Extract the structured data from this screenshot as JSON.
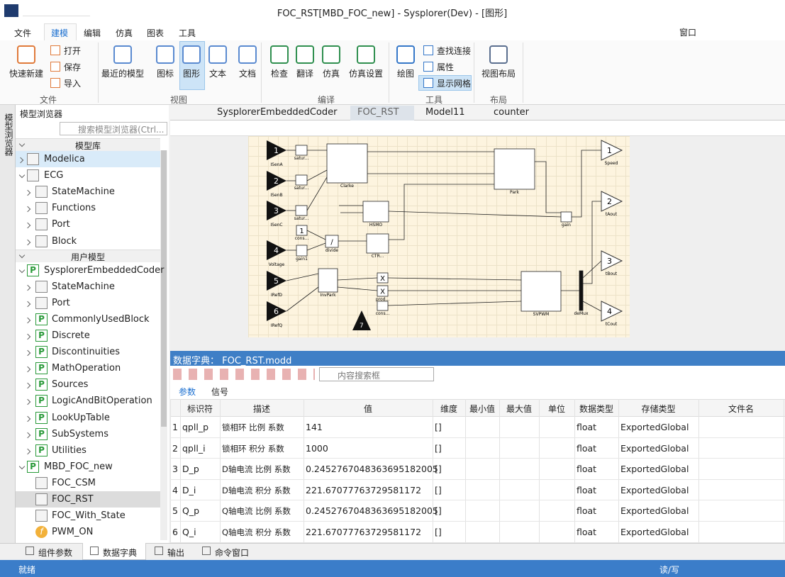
{
  "window": {
    "title": "FOC_RST[MBD_FOC_new] - Sysplorer(Dev) - [图形]"
  },
  "menu": {
    "items": [
      "文件",
      "建模",
      "编辑",
      "仿真",
      "图表",
      "工具"
    ],
    "window_menu": "窗口"
  },
  "ribbon": {
    "groups": [
      {
        "name": "文件",
        "buttons": [
          "快速新建"
        ],
        "small": [
          "打开",
          "保存",
          "导入"
        ]
      },
      {
        "name": "视图",
        "buttons": [
          "最近的模型",
          "图标",
          "图形",
          "文本",
          "文档"
        ]
      },
      {
        "name": "编译",
        "buttons": [
          "检查",
          "翻译",
          "仿真",
          "仿真设置"
        ]
      },
      {
        "name": "工具",
        "buttons": [
          "绘图"
        ],
        "small": [
          "查找连接",
          "属性",
          "显示网格"
        ]
      },
      {
        "name": "布局",
        "buttons": [
          "视图布局"
        ]
      }
    ]
  },
  "sidebar": {
    "tab": "模型浏览器",
    "title": "模型浏览器",
    "search": "搜索模型浏览器(Ctrl...",
    "sections": [
      {
        "title": "模型库",
        "items": [
          {
            "label": "Modelica",
            "icon": "library",
            "highlight": "blue"
          },
          {
            "label": "ECG",
            "icon": "library",
            "children": [
              {
                "label": "StateMachine",
                "icon": "library"
              },
              {
                "label": "Functions",
                "icon": "library"
              },
              {
                "label": "Port",
                "icon": "library"
              },
              {
                "label": "Block",
                "icon": "library"
              }
            ]
          }
        ]
      },
      {
        "title": "用户模型",
        "items": [
          {
            "label": "SysplorerEmbeddedCoder",
            "icon": "P",
            "children": [
              {
                "label": "StateMachine",
                "icon": "library"
              },
              {
                "label": "Port",
                "icon": "library"
              },
              {
                "label": "CommonlyUsedBlock",
                "icon": "P"
              },
              {
                "label": "Discrete",
                "icon": "P"
              },
              {
                "label": "Discontinuities",
                "icon": "P"
              },
              {
                "label": "MathOperation",
                "icon": "P"
              },
              {
                "label": "Sources",
                "icon": "P"
              },
              {
                "label": "LogicAndBitOperation",
                "icon": "P"
              },
              {
                "label": "LookUpTable",
                "icon": "P"
              },
              {
                "label": "SubSystems",
                "icon": "P"
              },
              {
                "label": "Utilities",
                "icon": "P"
              }
            ]
          },
          {
            "label": "MBD_FOC_new",
            "icon": "P",
            "children": [
              {
                "label": "FOC_CSM",
                "icon": "model"
              },
              {
                "label": "FOC_RST",
                "icon": "model",
                "highlight": "gray"
              },
              {
                "label": "FOC_With_State",
                "icon": "block"
              },
              {
                "label": "PWM_ON",
                "icon": "f"
              }
            ]
          }
        ]
      }
    ]
  },
  "editor": {
    "tabs": [
      "SysplorerEmbeddedCoder",
      "FOC_RST",
      "Model11",
      "counter"
    ]
  },
  "diagram": {
    "inports": [
      {
        "number": "1",
        "label": "ISenA"
      },
      {
        "number": "2",
        "label": "ISenB"
      },
      {
        "number": "3",
        "label": "ISenC"
      },
      {
        "number": "4",
        "label": "Voltage"
      },
      {
        "number": "5",
        "label": "IRefD"
      },
      {
        "number": "6",
        "label": "IRefQ"
      },
      {
        "number": "7"
      }
    ],
    "outports": [
      {
        "number": "1",
        "label": "Speed"
      },
      {
        "number": "2",
        "label": "tAout"
      },
      {
        "number": "3",
        "label": "tBout"
      },
      {
        "number": "4",
        "label": "tCout"
      }
    ],
    "blocks": [
      {
        "label": "satur..."
      },
      {
        "label": "satur..."
      },
      {
        "label": "satur..."
      },
      {
        "label": "Clarke"
      },
      {
        "label": "Park"
      },
      {
        "label": "HSMO"
      },
      {
        "label": "CTR..."
      },
      {
        "label": "InvPark"
      },
      {
        "label": "SVPWM"
      },
      {
        "label": "deMux"
      },
      {
        "label": "cons...",
        "symbol": "1"
      },
      {
        "label": "divide",
        "symbol": "/"
      },
      {
        "label": "gain1"
      },
      {
        "label": "gain"
      },
      {
        "symbol": "X"
      },
      {
        "label": "prod...",
        "symbol": "X"
      },
      {
        "label": "cons..."
      }
    ]
  },
  "dictionary": {
    "title": "数据字典： FOC_RST.modd",
    "search": "内容搜索框",
    "tabs": [
      "参数",
      "信号"
    ],
    "columns": [
      "标识符",
      "描述",
      "值",
      "维度",
      "最小值",
      "最大值",
      "单位",
      "数据类型",
      "存储类型",
      "文件名"
    ],
    "rows": [
      {
        "index": "1",
        "name": "qpll_p",
        "desc": "锁相环 比例 系数",
        "value": "141",
        "dim": "[]",
        "type": "float",
        "storage": "ExportedGlobal"
      },
      {
        "index": "2",
        "name": "qpll_i",
        "desc": "锁相环 积分 系数",
        "value": "1000",
        "dim": "[]",
        "type": "float",
        "storage": "ExportedGlobal"
      },
      {
        "index": "3",
        "name": "D_p",
        "desc": "D轴电流 比例 系数",
        "value": "0.245276704836369518200​5",
        "dim": "[]",
        "type": "float",
        "storage": "ExportedGlobal"
      },
      {
        "index": "4",
        "name": "D_i",
        "desc": "D轴电流 积分 系数",
        "value": "221.67077763729581172",
        "dim": "[]",
        "type": "float",
        "storage": "ExportedGlobal"
      },
      {
        "index": "5",
        "name": "Q_p",
        "desc": "Q轴电流 比例 系数",
        "value": "0.2452767048363695182005",
        "dim": "[]",
        "type": "float",
        "storage": "ExportedGlobal"
      },
      {
        "index": "6",
        "name": "Q_i",
        "desc": "Q轴电流 积分 系数",
        "value": "221.67077763729581172",
        "dim": "[]",
        "type": "float",
        "storage": "ExportedGlobal"
      }
    ]
  },
  "bottom_tabs": [
    "组件参数",
    "数据字典",
    "输出",
    "命令窗口"
  ],
  "status": {
    "left": "就绪",
    "right": "读/写"
  }
}
